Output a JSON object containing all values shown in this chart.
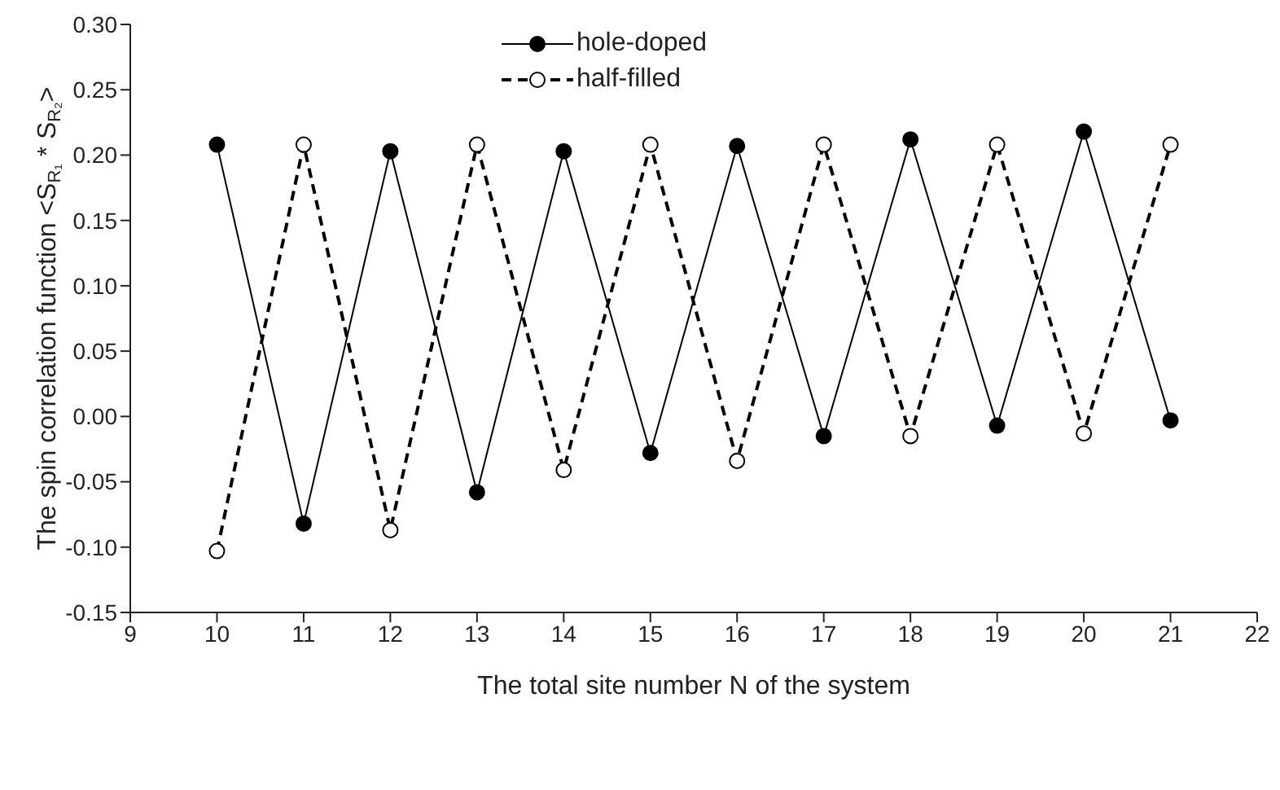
{
  "chart_data": {
    "type": "line",
    "xlabel": "The total site number N of the system",
    "ylabel": "The spin correlation function <S$_{R₁}$ * S$_{R₂}$>",
    "x": [
      10,
      11,
      12,
      13,
      14,
      15,
      16,
      17,
      18,
      19,
      20,
      21
    ],
    "series": [
      {
        "name": "hole-doped",
        "color": "#000000",
        "line_style": "solid",
        "values": [
          0.208,
          -0.082,
          0.203,
          -0.058,
          0.203,
          -0.028,
          0.207,
          -0.015,
          0.212,
          -0.007,
          0.218,
          -0.003
        ]
      },
      {
        "name": "half-filled",
        "color": "#000000",
        "line_style": "dashed",
        "values": [
          -0.103,
          0.208,
          -0.087,
          0.208,
          -0.041,
          0.208,
          -0.034,
          0.208,
          -0.015,
          0.208,
          -0.013,
          0.208
        ]
      }
    ],
    "xlim": [
      9,
      22
    ],
    "xticks": [
      9,
      10,
      11,
      12,
      13,
      14,
      15,
      16,
      17,
      18,
      19,
      20,
      21,
      22
    ],
    "ylim": [
      -0.15,
      0.3
    ],
    "yticks": [
      {
        "value": -0.15,
        "label": "-0.15"
      },
      {
        "value": -0.1,
        "label": "-0.10"
      },
      {
        "value": -0.05,
        "label": "-0.05"
      },
      {
        "value": 0,
        "label": "0.00"
      },
      {
        "value": 0.05,
        "label": "0.05"
      },
      {
        "value": 0.1,
        "label": "0.10"
      },
      {
        "value": 0.15,
        "label": "0.15"
      },
      {
        "value": 0.2,
        "label": "0.20"
      },
      {
        "value": 0.25,
        "label": "0.25"
      },
      {
        "value": 0.3,
        "label": "0.30"
      }
    ],
    "marker": "circle",
    "grid": false,
    "legend": "top"
  }
}
